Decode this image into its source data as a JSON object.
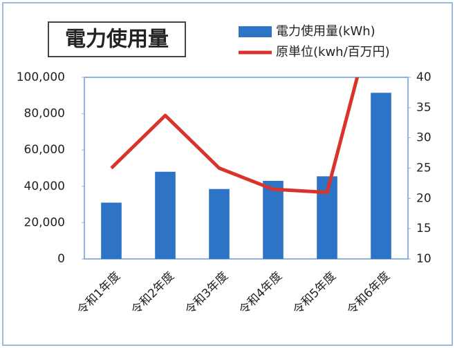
{
  "chart_data": {
    "type": "bar",
    "title": "電力使用量",
    "categories": [
      "令和1年度",
      "令和2年度",
      "令和3年度",
      "令和4年度",
      "令和5年度",
      "令和6年度"
    ],
    "series": [
      {
        "name": "電力使用量(kWh)",
        "type": "bar",
        "color": "#2e74c6",
        "values": [
          31000,
          48000,
          38500,
          43000,
          45500,
          91500
        ]
      },
      {
        "name": "原単位(kwh/百万円)",
        "type": "line",
        "color": "#d9342b",
        "axis": "y2",
        "values": [
          25,
          33.7,
          25,
          21.5,
          21,
          55
        ]
      }
    ],
    "ylim": [
      0,
      100000
    ],
    "yticks": [
      0,
      {
        "value": 20000,
        "label": "20,000"
      },
      {
        "value": 40000,
        "label": "40,000"
      },
      {
        "value": 60000,
        "label": "60,000"
      },
      {
        "value": 80000,
        "label": "80,000"
      },
      {
        "value": 100000,
        "label": "100,000"
      }
    ],
    "y2lim": [
      10,
      40
    ],
    "y2ticks": [
      10,
      15,
      20,
      25,
      30,
      35,
      40
    ],
    "legend": "top"
  }
}
